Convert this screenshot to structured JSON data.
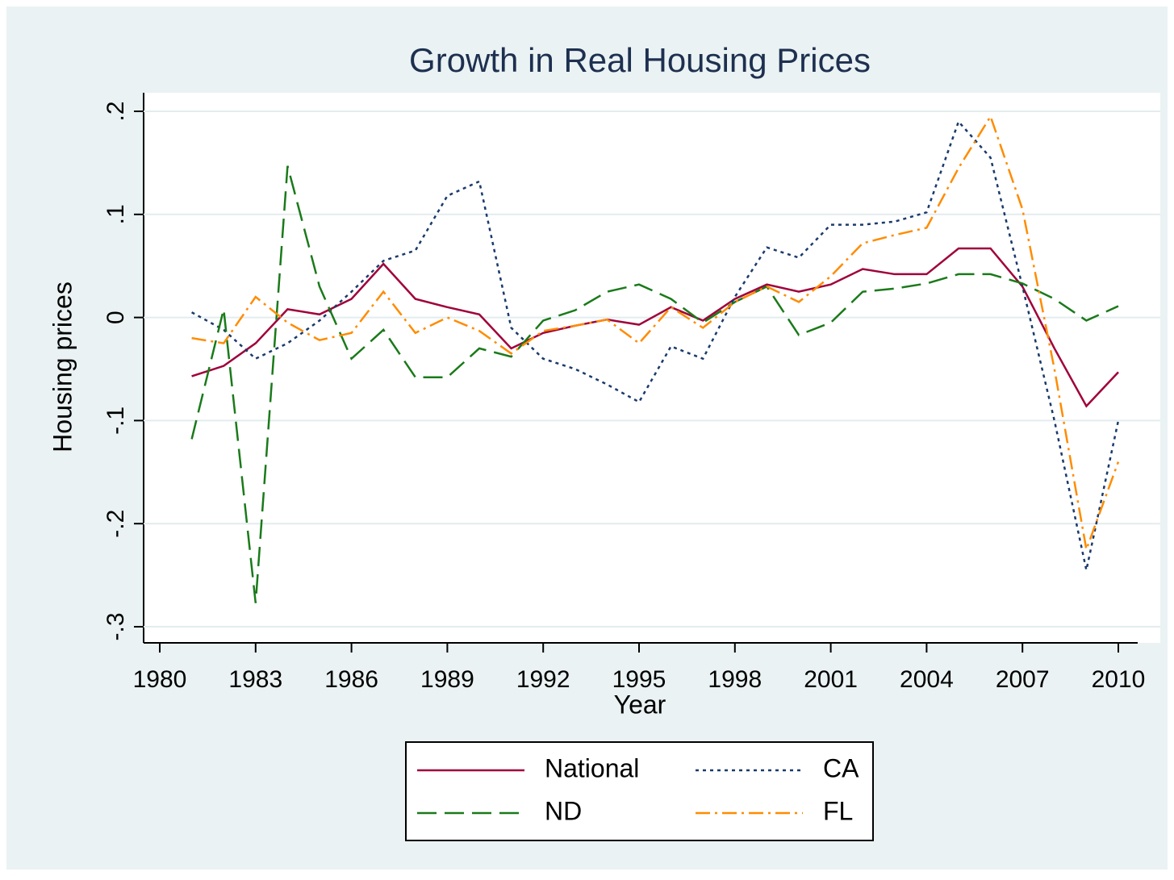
{
  "chart_data": {
    "type": "line",
    "title": "Growth in Real Housing Prices",
    "x_label": "Year",
    "y_label": "Housing prices",
    "x": [
      1981,
      1982,
      1983,
      1984,
      1985,
      1986,
      1987,
      1988,
      1989,
      1990,
      1991,
      1992,
      1993,
      1994,
      1995,
      1996,
      1997,
      1998,
      1999,
      2000,
      2001,
      2002,
      2003,
      2004,
      2005,
      2006,
      2007,
      2008,
      2009,
      2010
    ],
    "series": [
      {
        "name": "National",
        "color": "#a0003a",
        "line_style": "solid",
        "values": [
          -0.057,
          -0.047,
          -0.025,
          0.008,
          0.003,
          0.018,
          0.052,
          0.018,
          0.01,
          0.003,
          -0.03,
          -0.015,
          -0.008,
          -0.002,
          -0.007,
          0.01,
          -0.003,
          0.018,
          0.032,
          0.025,
          0.032,
          0.047,
          0.042,
          0.042,
          0.067,
          0.067,
          0.03,
          -0.03,
          -0.086,
          -0.053
        ]
      },
      {
        "name": "CA",
        "color": "#1a3a6b",
        "line_style": "dot",
        "values": [
          0.005,
          -0.012,
          -0.04,
          -0.025,
          -0.003,
          0.025,
          0.055,
          0.065,
          0.118,
          0.132,
          -0.01,
          -0.04,
          -0.05,
          -0.065,
          -0.082,
          -0.028,
          -0.04,
          0.02,
          0.068,
          0.058,
          0.09,
          0.09,
          0.093,
          0.102,
          0.19,
          0.155,
          0.03,
          -0.1,
          -0.245,
          -0.1
        ]
      },
      {
        "name": "ND",
        "color": "#1a7a1a",
        "line_style": "longdash",
        "values": [
          -0.118,
          0.008,
          -0.277,
          0.147,
          0.03,
          -0.04,
          -0.012,
          -0.058,
          -0.058,
          -0.03,
          -0.038,
          -0.003,
          0.007,
          0.025,
          0.032,
          0.018,
          -0.005,
          0.015,
          0.03,
          -0.017,
          -0.005,
          0.025,
          0.028,
          0.033,
          0.042,
          0.042,
          0.033,
          0.018,
          -0.003,
          0.011
        ]
      },
      {
        "name": "FL",
        "color": "#ff8c00",
        "line_style": "dashdot",
        "values": [
          -0.02,
          -0.025,
          0.02,
          -0.005,
          -0.022,
          -0.015,
          0.025,
          -0.015,
          0.0,
          -0.013,
          -0.035,
          -0.013,
          -0.008,
          -0.002,
          -0.025,
          0.01,
          -0.01,
          0.015,
          0.03,
          0.015,
          0.04,
          0.072,
          0.08,
          0.087,
          0.145,
          0.195,
          0.105,
          -0.05,
          -0.225,
          -0.14
        ]
      }
    ],
    "xlim": [
      1980,
      2010
    ],
    "xticks": [
      1980,
      1983,
      1986,
      1989,
      1992,
      1995,
      1998,
      2001,
      2004,
      2007,
      2010
    ],
    "ylim": [
      -0.3,
      0.2
    ],
    "yticks": [
      {
        "value": -0.3,
        "label": "-.3"
      },
      {
        "value": -0.2,
        "label": "-.2"
      },
      {
        "value": -0.1,
        "label": "-.1"
      },
      0,
      {
        "value": 0.1,
        "label": ".1"
      },
      {
        "value": 0.2,
        "label": ".2"
      }
    ],
    "grid": true,
    "legend_position": "bottom"
  }
}
